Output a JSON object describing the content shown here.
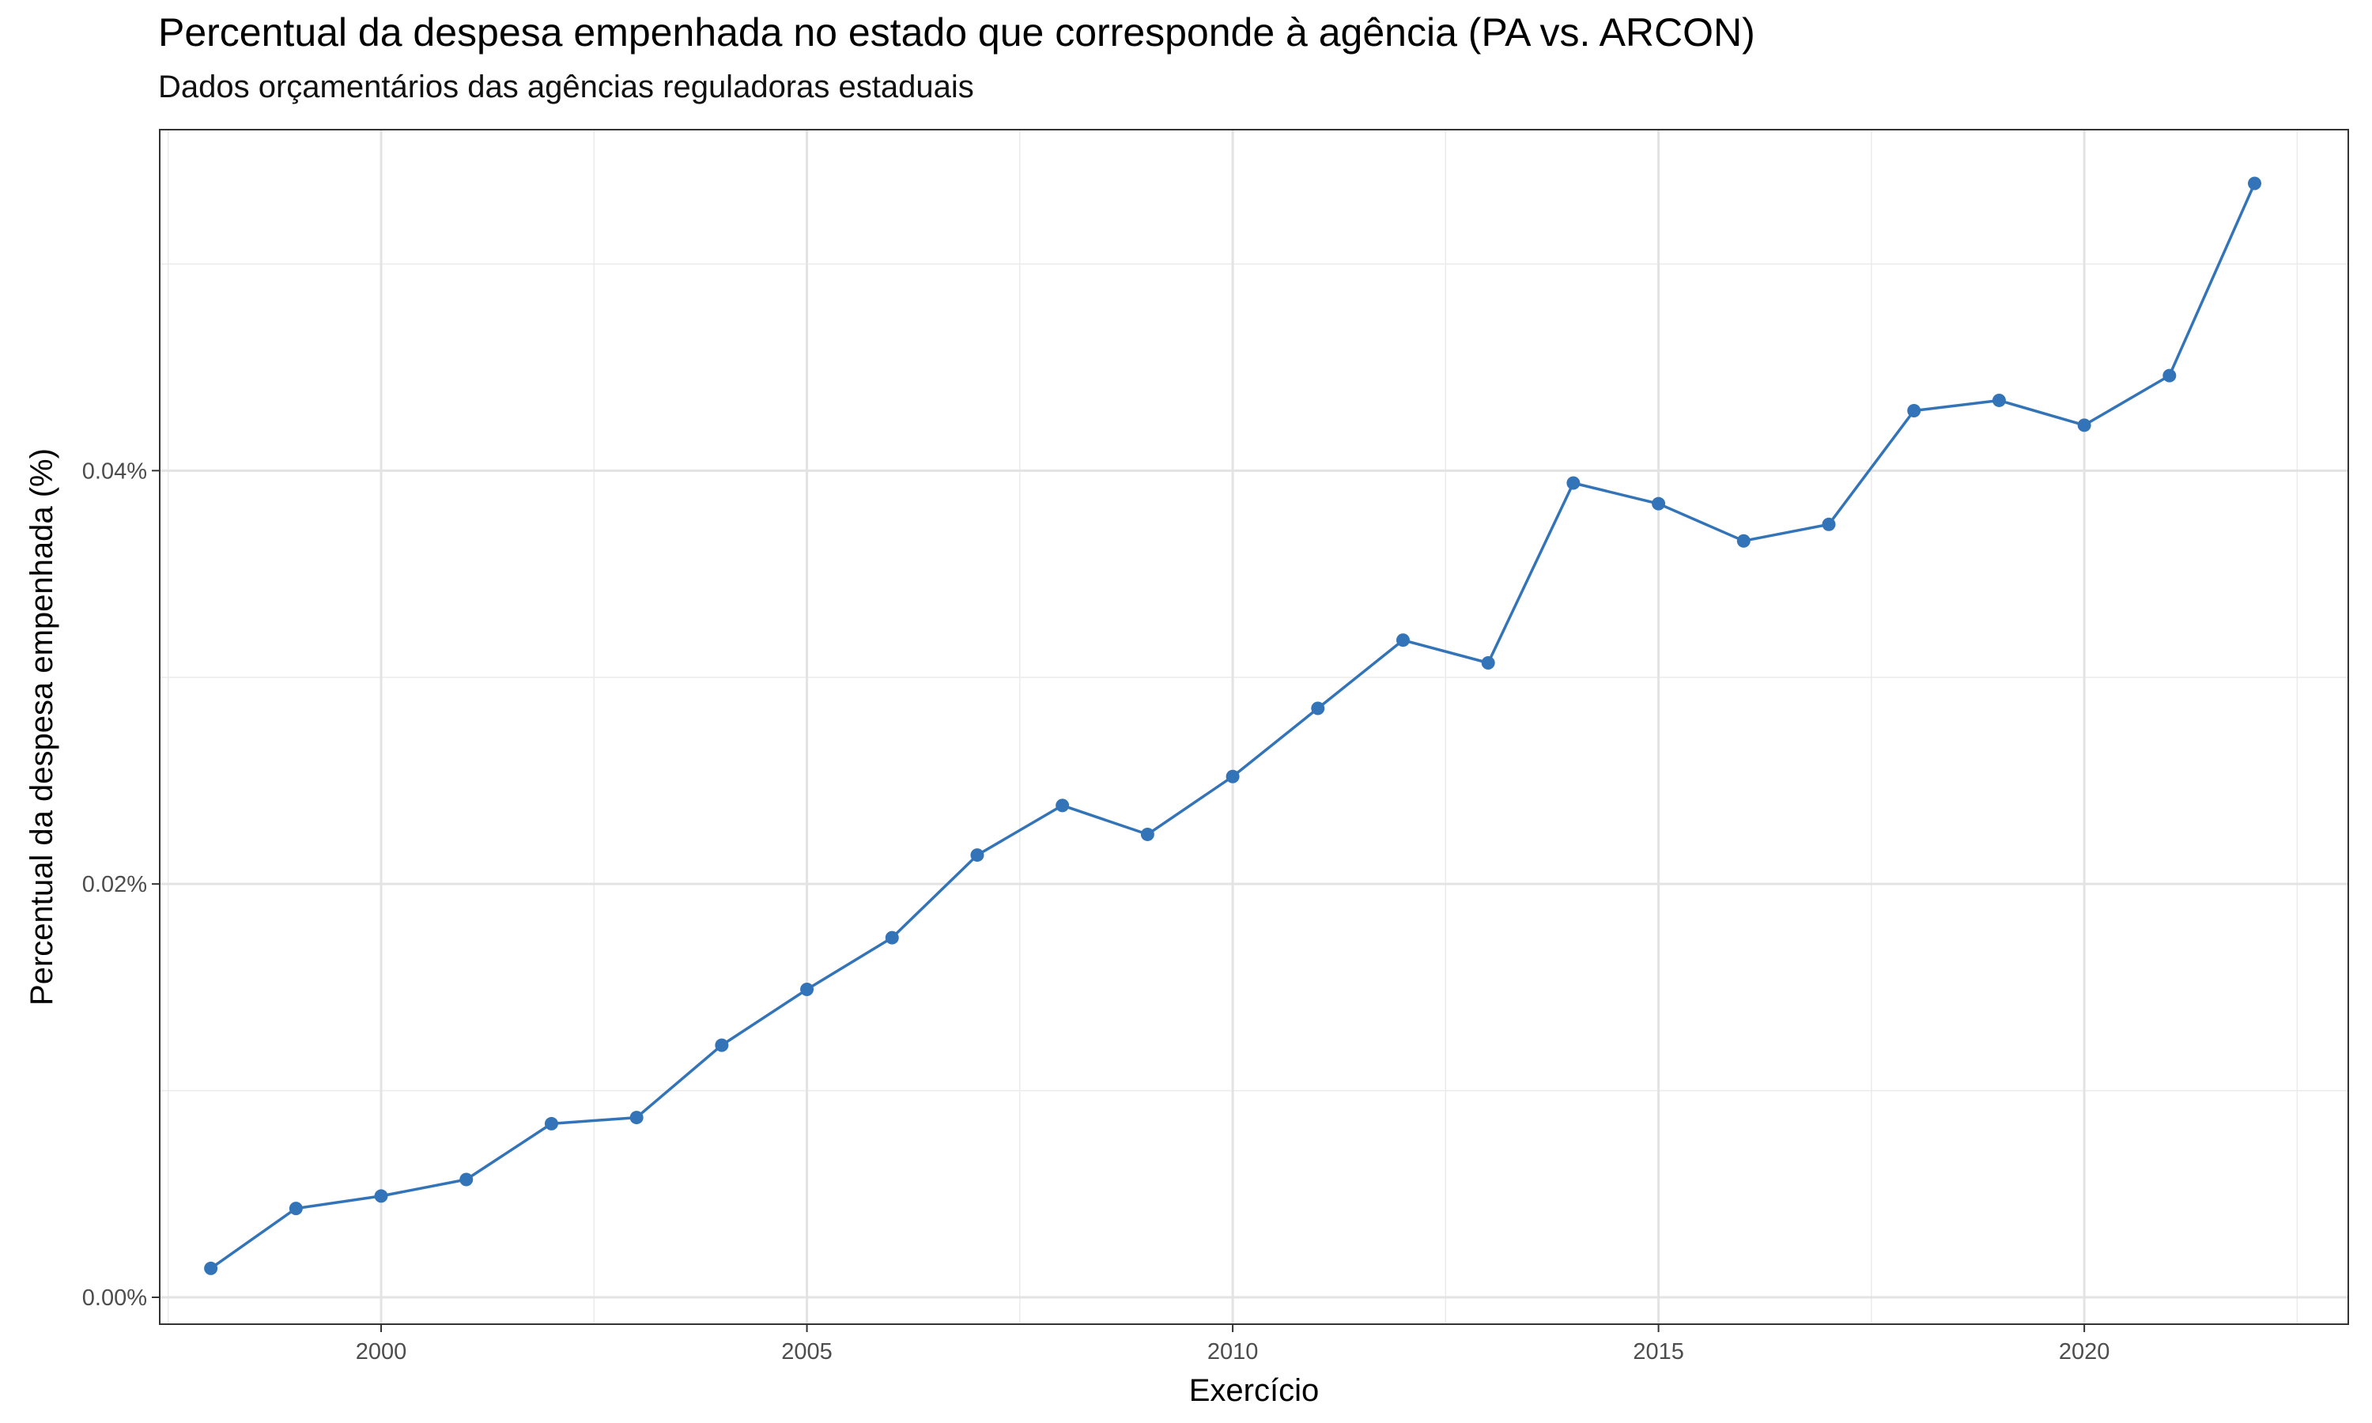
{
  "chart_data": {
    "type": "line",
    "title": "Percentual da despesa empenhada no estado que corresponde à agência (PA vs. ARCON)",
    "subtitle": "Dados orçamentários das agências reguladoras estaduais",
    "xlabel": "Exercício",
    "ylabel": "Percentual da despesa empenhada (%)",
    "xlim": [
      1997.4,
      2023.1
    ],
    "ylim": [
      -0.0013,
      0.0565
    ],
    "x_ticks": [
      2000,
      2005,
      2010,
      2015,
      2020
    ],
    "x_tick_labels": [
      "2000",
      "2005",
      "2010",
      "2015",
      "2020"
    ],
    "x_minor_ticks": [
      1997.5,
      2002.5,
      2007.5,
      2012.5,
      2017.5,
      2022.5
    ],
    "y_ticks": [
      0,
      0.02,
      0.04
    ],
    "y_tick_labels": [
      "0.00%",
      "0.02%",
      "0.04%"
    ],
    "y_minor_ticks": [
      0.01,
      0.03,
      0.05
    ],
    "grid": true,
    "line_color": "#3374b8",
    "series": [
      {
        "x": [
          1998,
          1999,
          2000,
          2001,
          2002,
          2003,
          2004,
          2005,
          2006,
          2007,
          2008,
          2009,
          2010,
          2011,
          2012,
          2013,
          2014,
          2015,
          2016,
          2017,
          2018,
          2019,
          2020,
          2021,
          2022
        ],
        "values": [
          0.0014,
          0.0043,
          0.0049,
          0.0057,
          0.0084,
          0.0087,
          0.0122,
          0.0149,
          0.0174,
          0.0214,
          0.0238,
          0.0224,
          0.0252,
          0.0285,
          0.0318,
          0.0307,
          0.0394,
          0.0384,
          0.0366,
          0.0374,
          0.0429,
          0.0434,
          0.0422,
          0.0446,
          0.0539
        ]
      }
    ]
  }
}
